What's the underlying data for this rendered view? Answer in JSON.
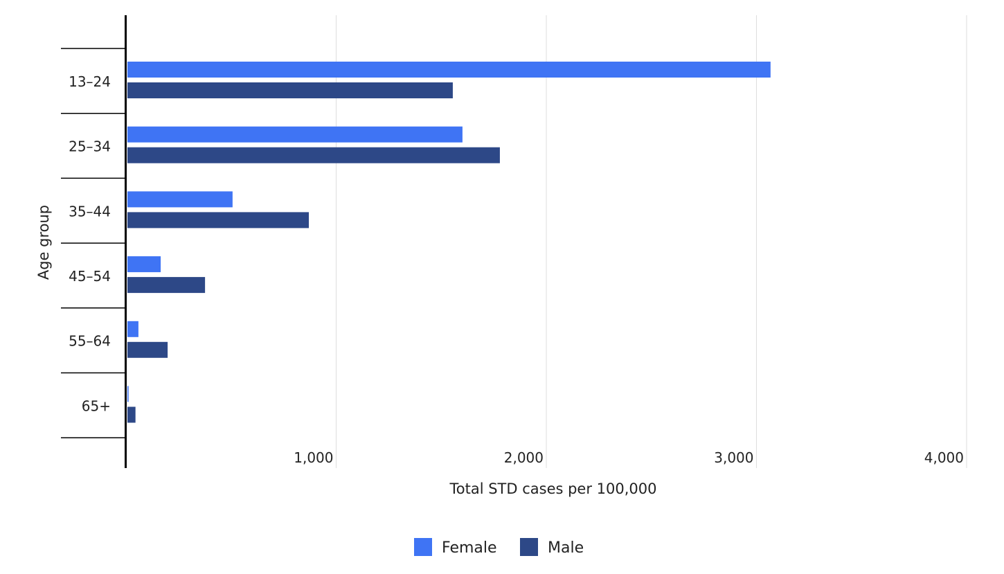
{
  "chart_data": {
    "type": "bar",
    "orientation": "horizontal",
    "categories": [
      "13–24",
      "25–34",
      "35–44",
      "45–54",
      "55–64",
      "65+"
    ],
    "series": [
      {
        "name": "Female",
        "color": "#3F74F4",
        "values": [
          3067,
          1601,
          507,
          165,
          59,
          12
        ]
      },
      {
        "name": "Male",
        "color": "#2D4887",
        "values": [
          1555,
          1779,
          870,
          376,
          198,
          45
        ]
      }
    ],
    "xlabel": "Total STD cases per 100,000",
    "ylabel": "Age group",
    "xlim": [
      0,
      4000
    ],
    "xticks": [
      1000,
      2000,
      3000,
      4000
    ],
    "xtick_labels": [
      "1,000",
      "2,000",
      "3,000",
      "4,000"
    ],
    "grid": "vertical",
    "legend": "bottom"
  }
}
